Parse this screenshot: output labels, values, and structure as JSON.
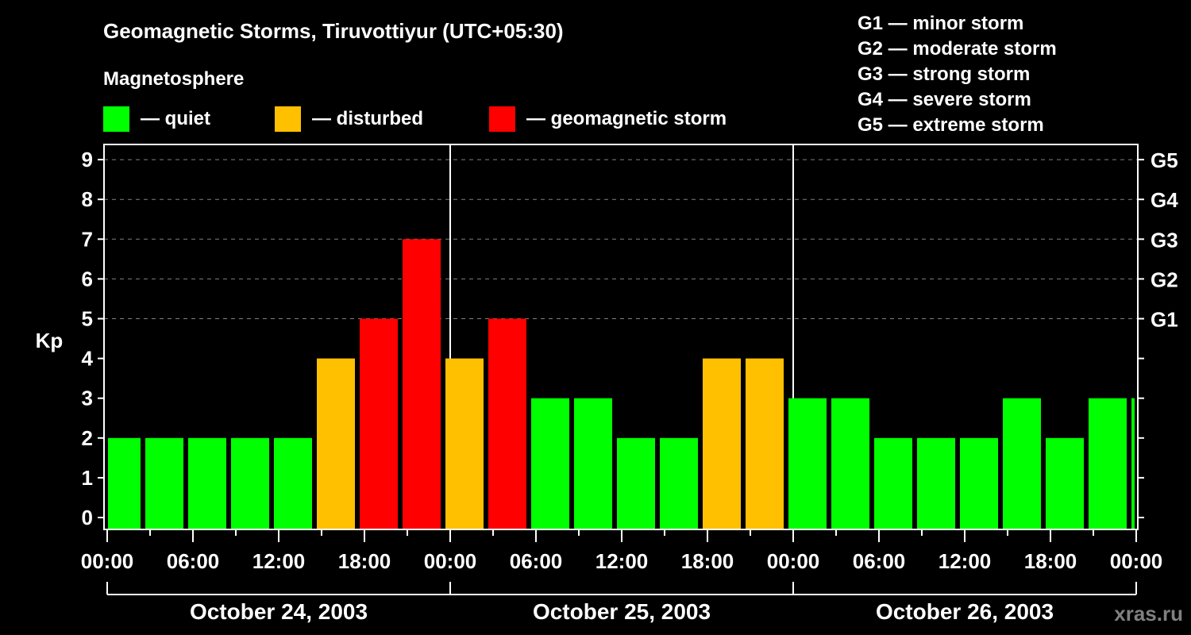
{
  "header": {
    "title": "Geomagnetic Storms, Tiruvottiyur (UTC+05:30)",
    "subtitle": "Magnetosphere"
  },
  "legend": [
    {
      "label": "— quiet",
      "color": "#00ff00"
    },
    {
      "label": "— disturbed",
      "color": "#ffc000"
    },
    {
      "label": "— geomagnetic storm",
      "color": "#ff0000"
    }
  ],
  "storm_scale": [
    "G1 — minor storm",
    "G2 — moderate storm",
    "G3 — strong storm",
    "G4 — severe storm",
    "G5 — extreme storm"
  ],
  "watermark": "xras.ru",
  "chart_data": {
    "type": "bar",
    "title": "Geomagnetic Storms, Tiruvottiyur (UTC+05:30)",
    "ylabel": "Kp",
    "ylim": [
      0,
      9
    ],
    "yticks": [
      0,
      1,
      2,
      3,
      4,
      5,
      6,
      7,
      8,
      9
    ],
    "right_ticks": {
      "5": "G1",
      "6": "G2",
      "7": "G3",
      "8": "G4",
      "9": "G5"
    },
    "xtick_labels": [
      "00:00",
      "06:00",
      "12:00",
      "18:00",
      "00:00",
      "06:00",
      "12:00",
      "18:00",
      "00:00",
      "06:00",
      "12:00",
      "18:00",
      "00:00"
    ],
    "days": [
      "October 24, 2003",
      "October 25, 2003",
      "October 26, 2003"
    ],
    "bin_start_local": [
      "24 00:00",
      "24 02:30",
      "24 05:30",
      "24 08:30",
      "24 11:30",
      "24 14:30",
      "24 17:30",
      "24 20:30",
      "24 23:30",
      "25 02:30",
      "25 05:30",
      "25 08:30",
      "25 11:30",
      "25 14:30",
      "25 17:30",
      "25 20:30",
      "25 23:30",
      "26 02:30",
      "26 05:30",
      "26 08:30",
      "26 11:30",
      "26 14:30",
      "26 17:30",
      "26 20:30",
      "26 23:30"
    ],
    "values": [
      2,
      2,
      2,
      2,
      2,
      4,
      5,
      7,
      4,
      5,
      3,
      3,
      2,
      2,
      4,
      4,
      3,
      3,
      2,
      2,
      2,
      3,
      2,
      3,
      3
    ],
    "grid": "dashed horizontal at 5-9",
    "colors": {
      "quiet": "#00ff00",
      "disturbed": "#ffc000",
      "storm": "#ff0000"
    }
  }
}
